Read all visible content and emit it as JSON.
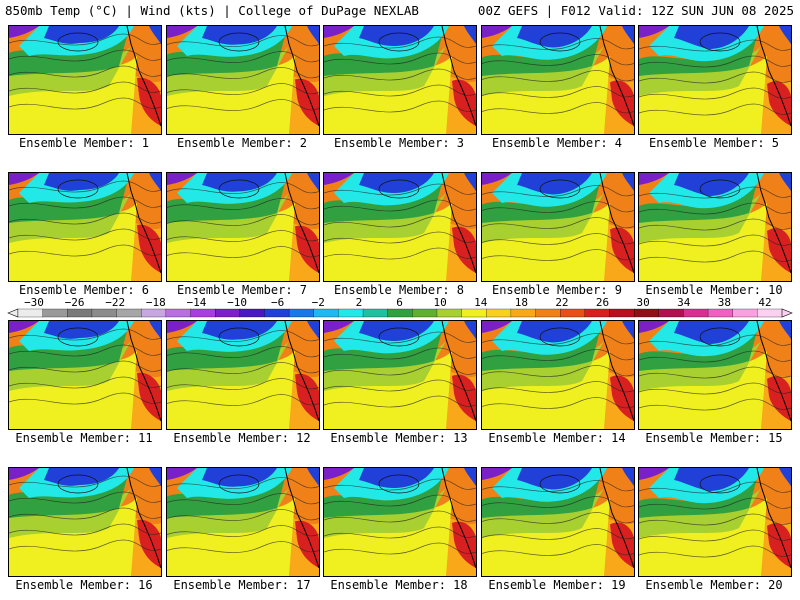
{
  "header": {
    "left": "850mb Temp (°C) | Wind (kts) | College of DuPage NEXLAB",
    "right": "00Z GEFS | F012 Valid: 12Z SUN JUN 08 2025"
  },
  "members": [
    "Ensemble Member: 1",
    "Ensemble Member: 2",
    "Ensemble Member: 3",
    "Ensemble Member: 4",
    "Ensemble Member: 5",
    "Ensemble Member: 6",
    "Ensemble Member: 7",
    "Ensemble Member: 8",
    "Ensemble Member: 9",
    "Ensemble Member: 10",
    "Ensemble Member: 11",
    "Ensemble Member: 12",
    "Ensemble Member: 13",
    "Ensemble Member: 14",
    "Ensemble Member: 15",
    "Ensemble Member: 16",
    "Ensemble Member: 17",
    "Ensemble Member: 18",
    "Ensemble Member: 19",
    "Ensemble Member: 20"
  ],
  "colorbar": {
    "tick_labels": [
      "−30",
      "−26",
      "−22",
      "−18",
      "−14",
      "−10",
      "−6",
      "−2",
      "2",
      "6",
      "10",
      "14",
      "18",
      "22",
      "26",
      "30",
      "34",
      "38",
      "42"
    ],
    "colors": [
      "#ececec",
      "#9a9a9a",
      "#7a7a7a",
      "#8c8c8c",
      "#a6a6a6",
      "#c8a6e0",
      "#b86fe0",
      "#a83de0",
      "#7a20c8",
      "#4a18c0",
      "#2040d8",
      "#1a78e8",
      "#20b8f0",
      "#22e8e8",
      "#20c0a0",
      "#30a040",
      "#60b030",
      "#a8d030",
      "#f0f020",
      "#f8d020",
      "#f8a818",
      "#f08018",
      "#e85018",
      "#d82020",
      "#b81020",
      "#901018",
      "#b01050",
      "#d83090",
      "#f060c0",
      "#f8a0e0",
      "#fcd0f0"
    ]
  },
  "map_colors": {
    "cold": "#7a20c8",
    "cool": "#2040d8",
    "cyan": "#22e8e8",
    "green": "#30a040",
    "lime": "#a8d030",
    "yellow": "#f0f020",
    "orange": "#f8a818",
    "warm": "#f08018",
    "hot": "#d82020"
  }
}
